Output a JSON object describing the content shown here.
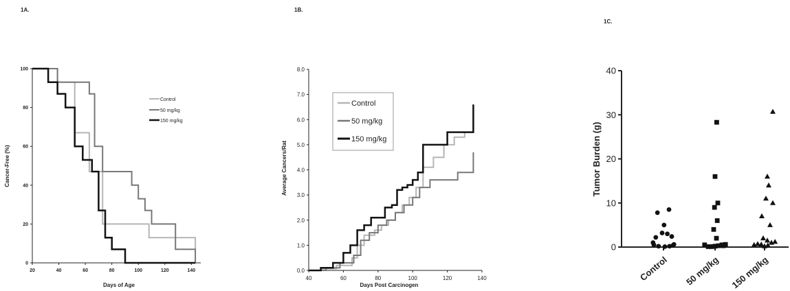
{
  "chart_data": [
    {
      "panel_label": "1A.",
      "type": "line",
      "step": true,
      "title": "",
      "xlabel": "Days of Age",
      "ylabel": "Cancer-Free (%)",
      "xlim": [
        20,
        145
      ],
      "ylim": [
        0,
        100
      ],
      "xticks": [
        20,
        40,
        60,
        80,
        100,
        120,
        140
      ],
      "yticks": [
        0,
        20,
        40,
        60,
        80,
        100
      ],
      "grid": false,
      "legend_position": "right",
      "series": [
        {
          "name": "Control",
          "color": "#b5b5b5",
          "x": [
            20,
            32,
            39,
            52,
            60,
            63,
            70,
            73,
            80,
            95,
            108,
            125,
            143
          ],
          "y": [
            100,
            100,
            93,
            67,
            67,
            47,
            47,
            20,
            20,
            20,
            13,
            13,
            7
          ]
        },
        {
          "name": "50 mg/kg",
          "color": "#777777",
          "x": [
            20,
            39,
            58,
            63,
            67,
            73,
            80,
            95,
            100,
            105,
            110,
            115,
            128,
            143
          ],
          "y": [
            100,
            93,
            93,
            87,
            60,
            47,
            47,
            40,
            33,
            27,
            20,
            20,
            7,
            0
          ]
        },
        {
          "name": "150 mg/kg",
          "color": "#111111",
          "x": [
            20,
            32,
            39,
            45,
            52,
            58,
            65,
            70,
            75,
            80,
            85,
            90,
            95,
            100,
            143
          ],
          "y": [
            100,
            93,
            87,
            80,
            60,
            53,
            47,
            27,
            13,
            7,
            7,
            0,
            0,
            0,
            0
          ]
        }
      ]
    },
    {
      "panel_label": "1B.",
      "type": "line",
      "step": true,
      "title": "",
      "xlabel": "Days Post Carcinogen",
      "ylabel": "Average Cancers/Rat",
      "xlim": [
        40,
        140
      ],
      "ylim": [
        0,
        8
      ],
      "xticks": [
        40,
        60,
        80,
        100,
        120,
        140
      ],
      "yticks": [
        "0.0",
        "1.0",
        "2.0",
        "3.0",
        "4.0",
        "5.0",
        "6.0",
        "7.0",
        "8.0"
      ],
      "grid": false,
      "legend_position": "top-left",
      "series": [
        {
          "name": "Control",
          "color": "#b5b5b5",
          "x": [
            40,
            48,
            56,
            65,
            68,
            72,
            78,
            82,
            86,
            90,
            94,
            98,
            102,
            106,
            112,
            118,
            124,
            130,
            135
          ],
          "y": [
            0.0,
            0.07,
            0.2,
            0.5,
            1.0,
            1.4,
            1.6,
            1.8,
            2.0,
            2.3,
            2.6,
            2.9,
            3.3,
            4.1,
            4.5,
            5.0,
            5.3,
            5.5,
            6.6
          ]
        },
        {
          "name": "50 mg/kg",
          "color": "#777777",
          "x": [
            40,
            50,
            58,
            66,
            70,
            75,
            80,
            85,
            90,
            95,
            100,
            104,
            110,
            118,
            126,
            135
          ],
          "y": [
            0.0,
            0.1,
            0.3,
            0.6,
            1.2,
            1.5,
            1.8,
            2.0,
            2.3,
            2.6,
            2.9,
            3.3,
            3.6,
            3.6,
            3.9,
            4.7
          ]
        },
        {
          "name": "150 mg/kg",
          "color": "#111111",
          "x": [
            40,
            47,
            54,
            60,
            64,
            68,
            72,
            76,
            80,
            84,
            88,
            91,
            94,
            97,
            100,
            103,
            106,
            112,
            120,
            127,
            135
          ],
          "y": [
            0.0,
            0.1,
            0.3,
            0.7,
            1.0,
            1.6,
            1.8,
            2.1,
            2.1,
            2.5,
            2.6,
            3.2,
            3.3,
            3.4,
            3.6,
            3.9,
            5.0,
            5.0,
            5.5,
            5.5,
            6.6
          ]
        }
      ]
    },
    {
      "panel_label": "1C.",
      "type": "scatter",
      "title": "",
      "xlabel": "",
      "ylabel": "Tumor Burden (g)",
      "ylim": [
        0,
        40
      ],
      "yticks": [
        0,
        10,
        20,
        30,
        40
      ],
      "grid": false,
      "categories": [
        "Control",
        "50 mg/kg",
        "150 mg/kg"
      ],
      "series": [
        {
          "name": "Control",
          "marker": "circle",
          "color": "#111111",
          "x_offsets": [
            -0.35,
            -0.18,
            0.05,
            0.22,
            0.38,
            -0.28,
            -0.05,
            0.14,
            0.3,
            -0.22,
            0.02,
            0.2,
            -0.38,
            0.35
          ],
          "values": [
            0.5,
            0.2,
            0.1,
            0.2,
            0.6,
            2.2,
            3.2,
            3.0,
            2.4,
            7.8,
            5.0,
            8.5,
            1.0,
            0.4
          ]
        },
        {
          "name": "50 mg/kg",
          "marker": "square",
          "color": "#111111",
          "x_offsets": [
            -0.38,
            -0.25,
            -0.12,
            0.0,
            0.12,
            0.25,
            0.38,
            0.05,
            -0.05,
            0.08,
            -0.02,
            0.1,
            0.0,
            0.06,
            0.3
          ],
          "values": [
            0.5,
            0.1,
            0.1,
            0.2,
            0.3,
            0.5,
            0.6,
            2.0,
            4.0,
            6.0,
            9.0,
            10.0,
            16.0,
            28.3,
            0.3
          ]
        },
        {
          "name": "150 mg/kg",
          "marker": "triangle",
          "color": "#111111",
          "x_offsets": [
            -0.38,
            -0.25,
            -0.12,
            0.0,
            0.12,
            0.25,
            0.38,
            -0.05,
            0.1,
            0.2,
            0.3,
            -0.1,
            0.05,
            0.15,
            0.1,
            0.3
          ],
          "values": [
            0.5,
            0.7,
            0.6,
            0.2,
            0.4,
            1.0,
            1.2,
            2.0,
            1.5,
            5.0,
            10.0,
            7.0,
            11.0,
            14.0,
            16.0,
            30.7
          ]
        }
      ]
    }
  ]
}
